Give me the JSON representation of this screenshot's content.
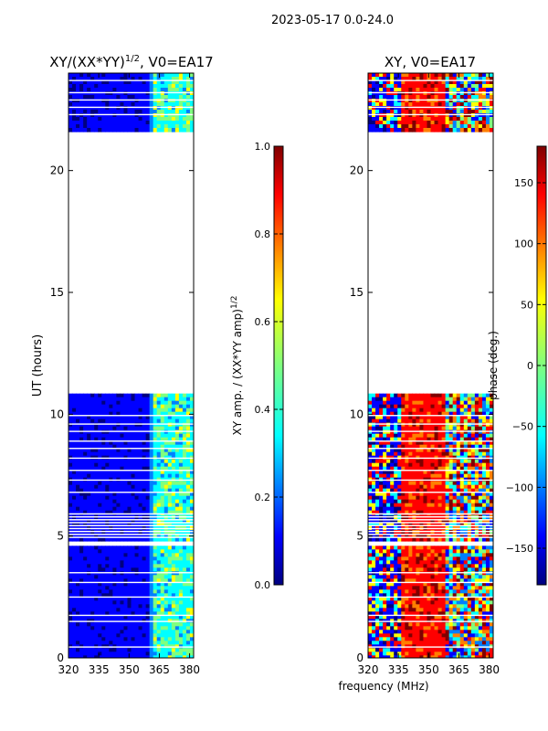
{
  "suptitle": "2023-05-17 0.0-24.0",
  "chart_data": [
    {
      "type": "heatmap",
      "title_main": "XY/(XX*YY)",
      "title_sup": "1/2",
      "title_tail": ", V0=EA17",
      "xlabel": "",
      "ylabel": "UT (hours)",
      "xlim": [
        320,
        382
      ],
      "ylim": [
        0,
        24
      ],
      "xticks": [
        320,
        335,
        350,
        365,
        380
      ],
      "yticks": [
        0,
        5,
        10,
        15,
        20
      ],
      "data_bands_hours": [
        [
          0,
          4.6
        ],
        [
          4.9,
          6.0
        ],
        [
          6.0,
          10.85
        ],
        [
          21.7,
          24
        ]
      ],
      "white_gap_hours": [
        [
          10.85,
          21.7
        ]
      ],
      "colorbar": {
        "label_main": "XY amp. / (XX*YY amp)",
        "label_sup": "1/2",
        "range": [
          0.0,
          1.0
        ],
        "ticks": [
          "0.0",
          "0.2",
          "0.4",
          "0.6",
          "0.8",
          "1.0"
        ]
      }
    },
    {
      "type": "heatmap",
      "title": "XY, V0=EA17",
      "xlabel": "frequency (MHz)",
      "xlim": [
        320,
        382
      ],
      "ylim": [
        0,
        24
      ],
      "xticks": [
        320,
        335,
        350,
        365,
        380
      ],
      "yticks": [
        0,
        5,
        10,
        15,
        20
      ],
      "data_bands_hours": [
        [
          0,
          4.6
        ],
        [
          4.9,
          6.0
        ],
        [
          6.0,
          10.85
        ],
        [
          21.7,
          24
        ]
      ],
      "white_gap_hours": [
        [
          10.85,
          21.7
        ]
      ],
      "colorbar": {
        "label": "phase (deg.)",
        "range": [
          -180,
          180
        ],
        "ticks": [
          "−150",
          "−100",
          "−50",
          "0",
          "50",
          "100",
          "150"
        ],
        "tick_values": [
          -150,
          -100,
          -50,
          0,
          50,
          100,
          150
        ]
      }
    }
  ],
  "colors": {
    "jet": [
      "#00007f",
      "#0000ff",
      "#007fff",
      "#00ffff",
      "#7fff7f",
      "#ffff00",
      "#ff7f00",
      "#ff0000",
      "#7f0000"
    ]
  }
}
